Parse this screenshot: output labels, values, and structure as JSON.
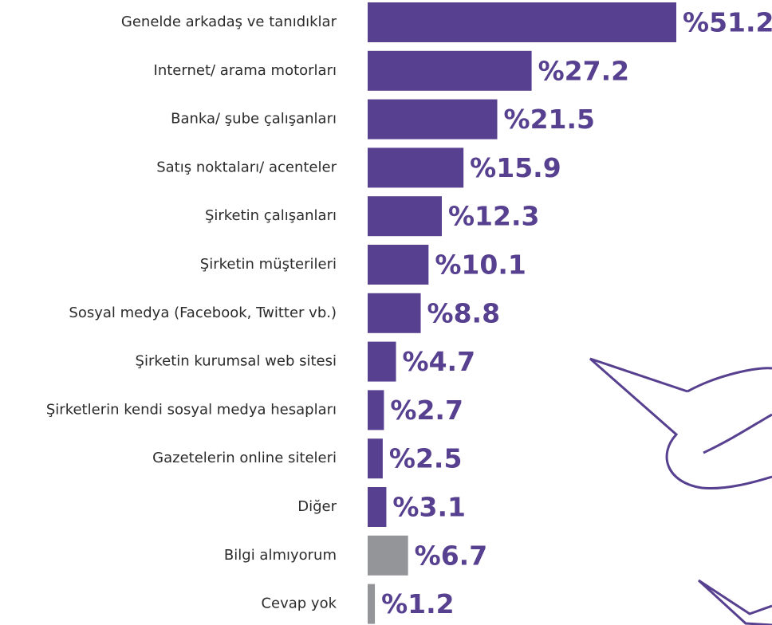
{
  "chart_data": {
    "type": "bar",
    "orientation": "horizontal",
    "categories": [
      "Genelde arkadaş ve tanıdıklar",
      "Internet/ arama motorları",
      "Banka/ şube çalışanları",
      "Satış noktaları/ acenteler",
      "Şirketin çalışanları",
      "Şirketin müşterileri",
      "Sosyal medya (Facebook, Twitter vb.)",
      "Şirketin kurumsal web sitesi",
      "Şirketlerin kendi sosyal medya hesapları",
      "Gazetelerin online siteleri",
      "Diğer",
      "Bilgi almıyorum",
      "Cevap yok"
    ],
    "values": [
      51.2,
      27.2,
      21.5,
      15.9,
      12.3,
      10.1,
      8.8,
      4.7,
      2.7,
      2.5,
      3.1,
      6.7,
      1.2
    ],
    "value_labels": [
      "%51.2",
      "%27.2",
      "%21.5",
      "%15.9",
      "%12.3",
      "%10.1",
      "%8.8",
      "%4.7",
      "%2.7",
      "%2.5",
      "%3.1",
      "%6.7",
      "%1.2"
    ],
    "colors": [
      "#56408f",
      "#56408f",
      "#56408f",
      "#56408f",
      "#56408f",
      "#56408f",
      "#56408f",
      "#56408f",
      "#56408f",
      "#56408f",
      "#56408f",
      "#939598",
      "#939598"
    ],
    "label_color": "#56408f"
  }
}
